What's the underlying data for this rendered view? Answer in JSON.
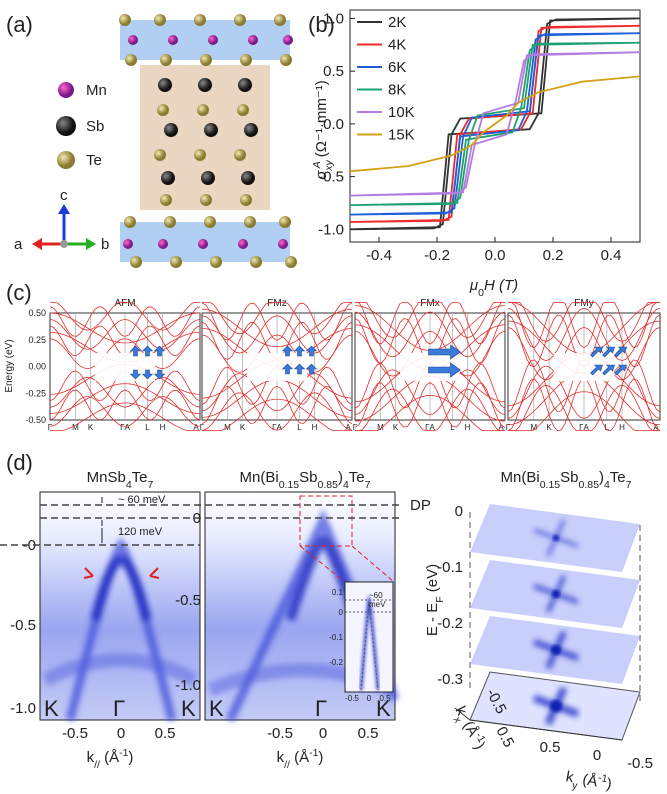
{
  "panel_a": {
    "label": "(a)",
    "legend": [
      "Mn",
      "Sb",
      "Te"
    ],
    "axes": [
      "c",
      "a",
      "b"
    ]
  },
  "chart_data": {
    "type": "line",
    "label": "(b)",
    "y_label": {
      "symbol": "σ",
      "subscript": "xy",
      "superscript": "A",
      "unit": "(Ω⁻¹·mm⁻¹)"
    },
    "x_label": {
      "symbol": "μ",
      "subscript": "0",
      "rest": "H (T)"
    },
    "xlim": [
      -0.5,
      0.5
    ],
    "xticks": [
      -0.4,
      -0.2,
      {
        "value": 0,
        "label": "0.0"
      },
      0.2,
      0.4
    ],
    "ylim": [
      -1.12,
      1.08
    ],
    "yticks": [
      {
        "value": -1,
        "label": "-1.0"
      },
      -0.5,
      {
        "value": 0,
        "label": "0.0"
      },
      0.5,
      {
        "value": 1,
        "label": "1.0"
      }
    ],
    "series": [
      {
        "name": "2K",
        "color": "#333333",
        "x": [
          0.5,
          0.19,
          0.16,
          -0.12,
          -0.15,
          -0.18,
          -0.21,
          -0.5,
          -0.19,
          -0.16,
          0.12,
          0.15,
          0.18,
          0.21,
          0.5
        ],
        "values": [
          1.0,
          0.98,
          0.1,
          0.05,
          -0.1,
          -0.95,
          -0.99,
          -1.0,
          -0.98,
          -0.1,
          -0.05,
          0.1,
          0.95,
          0.99,
          1.0
        ]
      },
      {
        "name": "4K",
        "color": "#ee2a2a",
        "x": [
          0.5,
          0.16,
          0.13,
          -0.09,
          -0.12,
          -0.15,
          -0.18,
          -0.5,
          -0.16,
          -0.13,
          0.09,
          0.12,
          0.15,
          0.18,
          0.5
        ],
        "values": [
          0.93,
          0.91,
          0.1,
          0.05,
          -0.1,
          -0.88,
          -0.92,
          -0.93,
          -0.91,
          -0.1,
          -0.05,
          0.1,
          0.88,
          0.92,
          0.93
        ]
      },
      {
        "name": "6K",
        "color": "#1f5fd6",
        "x": [
          0.5,
          0.15,
          0.12,
          -0.08,
          -0.11,
          -0.14,
          -0.17,
          -0.5,
          -0.15,
          -0.12,
          0.08,
          0.11,
          0.14,
          0.17,
          0.5
        ],
        "values": [
          0.86,
          0.84,
          0.12,
          0.06,
          -0.12,
          -0.8,
          -0.85,
          -0.86,
          -0.84,
          -0.12,
          -0.06,
          0.12,
          0.8,
          0.85,
          0.86
        ]
      },
      {
        "name": "8K",
        "color": "#20a070",
        "x": [
          0.5,
          0.13,
          0.1,
          -0.06,
          -0.09,
          -0.12,
          -0.15,
          -0.5,
          -0.13,
          -0.1,
          0.06,
          0.09,
          0.12,
          0.15,
          0.5
        ],
        "values": [
          0.77,
          0.75,
          0.15,
          0.08,
          -0.15,
          -0.7,
          -0.76,
          -0.77,
          -0.75,
          -0.15,
          -0.08,
          0.15,
          0.7,
          0.76,
          0.77
        ]
      },
      {
        "name": "10K",
        "color": "#b37de0",
        "x": [
          0.5,
          0.11,
          0.08,
          -0.04,
          -0.07,
          -0.1,
          -0.13,
          -0.5,
          -0.11,
          -0.08,
          0.04,
          0.07,
          0.1,
          0.13,
          0.5
        ],
        "values": [
          0.68,
          0.65,
          0.2,
          0.1,
          -0.2,
          -0.6,
          -0.66,
          -0.68,
          -0.65,
          -0.2,
          -0.1,
          0.2,
          0.6,
          0.66,
          0.68
        ]
      },
      {
        "name": "15K",
        "color": "#d4a017",
        "x": [
          -0.5,
          -0.3,
          -0.15,
          -0.08,
          -0.04,
          0,
          0.04,
          0.08,
          0.15,
          0.3,
          0.5
        ],
        "values": [
          -0.45,
          -0.4,
          -0.3,
          -0.2,
          -0.08,
          0,
          0.08,
          0.2,
          0.3,
          0.4,
          0.45
        ]
      }
    ]
  },
  "panel_c": {
    "label": "(c)",
    "y_label": "Energy (eV)",
    "yticks": [
      "0.50",
      "0.25",
      "0.00",
      "-0.25",
      "-0.50"
    ],
    "titles": [
      "AFM",
      "FMz",
      "FMx",
      "FMy"
    ],
    "k_labels": [
      "Γ",
      "M",
      "K",
      "ΓA",
      "L",
      "H",
      "A"
    ]
  },
  "panel_d": {
    "label": "(d)",
    "titles": [
      [
        "MnSb",
        "4",
        "Te",
        "7"
      ],
      [
        "Mn(Bi",
        "0.15",
        "Sb",
        "0.85",
        ")",
        "4",
        "Te",
        "7"
      ],
      [
        "Mn(Bi",
        "0.15",
        "Sb",
        "0.85",
        ")",
        "4",
        "Te",
        "7"
      ]
    ],
    "left_yticks": [
      "-0",
      "-0.5",
      "-1.0"
    ],
    "mid_yticks": [
      "0",
      "-0.5",
      "-1.0"
    ],
    "xticks": [
      "-0.5",
      "0",
      "0.5"
    ],
    "k_points": [
      "K",
      "Γ",
      "K"
    ],
    "x_label": [
      "k",
      "//",
      " (Å",
      "-1",
      ")"
    ],
    "annotations": [
      "~ 60 meV",
      "120 meV",
      "DP"
    ],
    "inset": {
      "yticks": [
        "0.1",
        "0",
        "-0.1",
        "-0.2"
      ],
      "xticks": [
        "-0.5",
        "0",
        "0.5"
      ],
      "note": [
        "~60",
        "meV"
      ]
    },
    "right": {
      "zticks": [
        "0",
        "-0.1",
        "-0.2",
        "-0.3"
      ],
      "z_label": [
        "E - E",
        "F",
        " (eV)"
      ],
      "kx_label": [
        "k",
        "x",
        " (Å",
        "-1",
        ")"
      ],
      "ky_label": [
        "k",
        "y",
        " (Å",
        "-1",
        ")"
      ],
      "kx_ticks": [
        "-0.5",
        "0",
        "0.5"
      ],
      "ky_ticks": [
        "0.5",
        "0",
        "-0.5"
      ]
    }
  }
}
